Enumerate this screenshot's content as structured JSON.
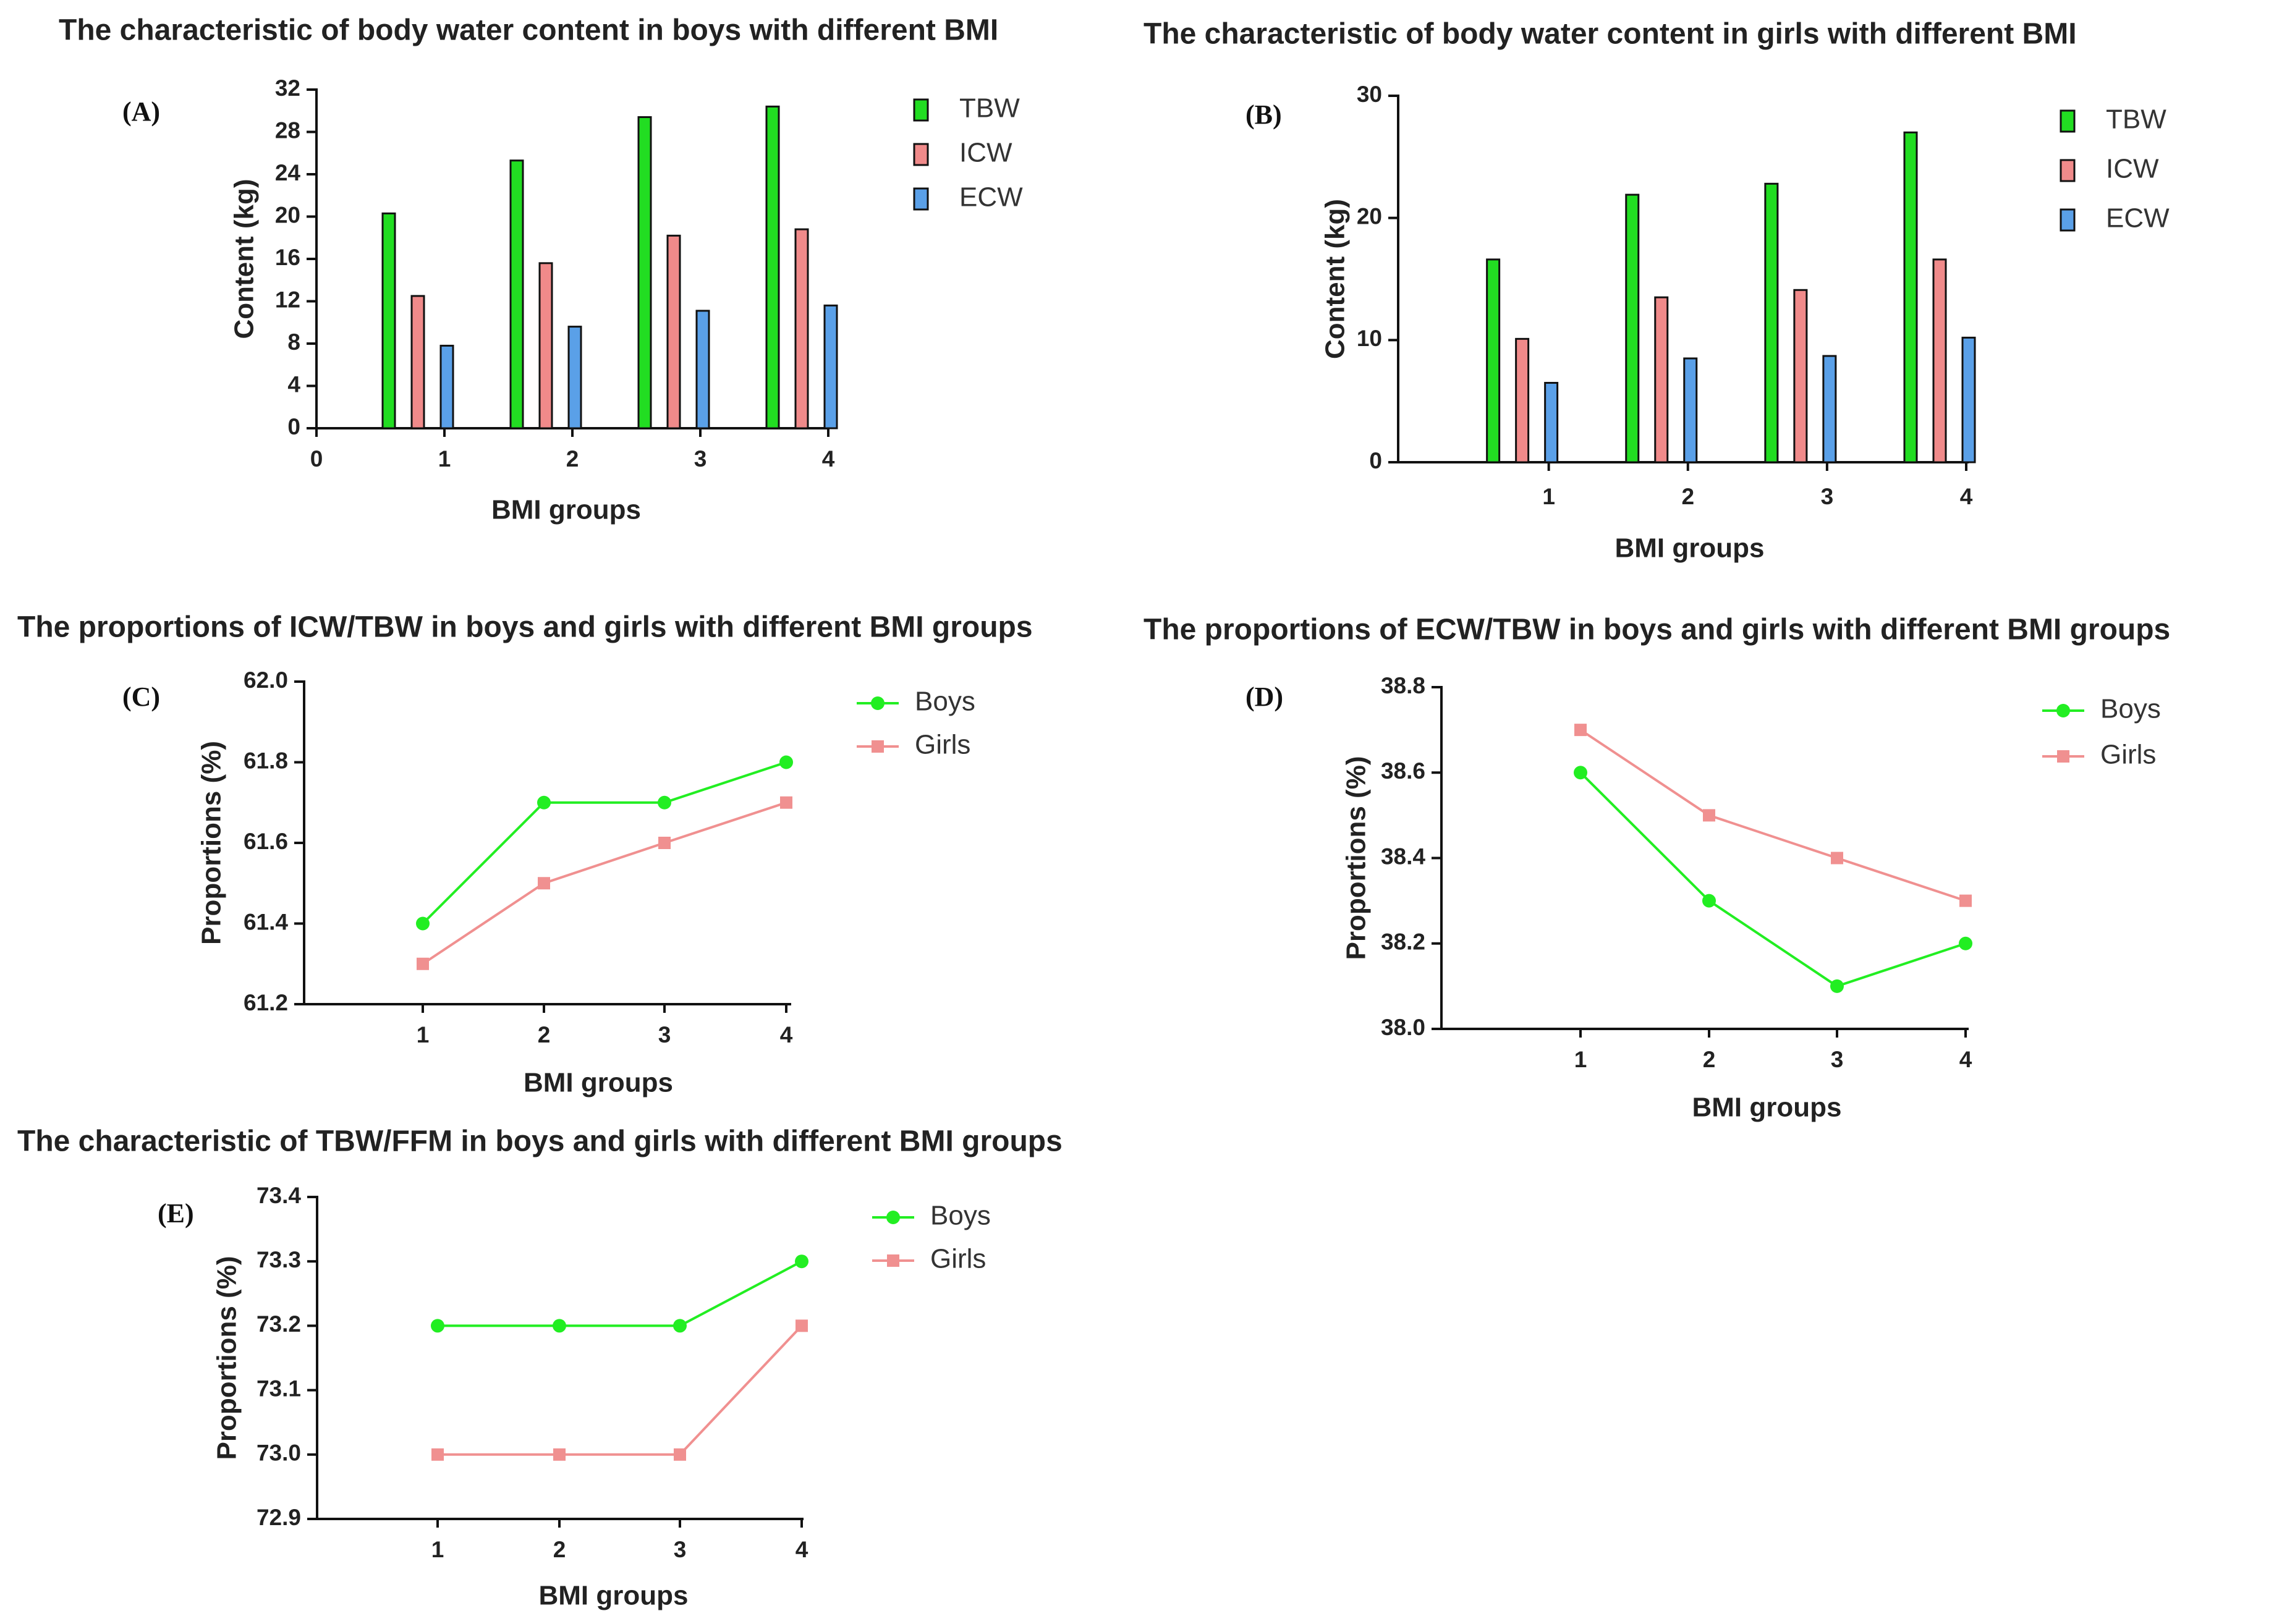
{
  "figure": {
    "colors": {
      "boys": "#22ee22",
      "girls": "#f09090",
      "tbw": "#22dd22",
      "icw": "#f08a8a",
      "ecw": "#5aa0e8",
      "axis": "#111111"
    },
    "panels": [
      "A",
      "B",
      "C",
      "D",
      "E"
    ]
  },
  "chart_data": [
    {
      "id": "A",
      "type": "bar",
      "panel_label": "(A)",
      "title": "The characteristic of body water content in boys with different BMI",
      "xlabel": "BMI groups",
      "ylabel": "Content (kg)",
      "categories": [
        "1",
        "2",
        "3",
        "4"
      ],
      "x_ticks": [
        "0",
        "1",
        "2",
        "3",
        "4"
      ],
      "ylim": [
        0,
        32
      ],
      "y_ticks": [
        "0",
        "4",
        "8",
        "12",
        "16",
        "20",
        "24",
        "28",
        "32"
      ],
      "legend_position": "top-right",
      "series": [
        {
          "name": "TBW",
          "color": "#22dd22",
          "values": [
            20.3,
            25.3,
            29.4,
            30.4
          ]
        },
        {
          "name": "ICW",
          "color": "#f08a8a",
          "values": [
            12.5,
            15.6,
            18.2,
            18.8
          ]
        },
        {
          "name": "ECW",
          "color": "#5aa0e8",
          "values": [
            7.8,
            9.6,
            11.1,
            11.6
          ]
        }
      ]
    },
    {
      "id": "B",
      "type": "bar",
      "panel_label": "(B)",
      "title": "The characteristic of body water content in girls with different BMI",
      "xlabel": "BMI groups",
      "ylabel": "Content (kg)",
      "categories": [
        "1",
        "2",
        "3",
        "4"
      ],
      "x_ticks": [
        "1",
        "2",
        "3",
        "4"
      ],
      "ylim": [
        0,
        30
      ],
      "y_ticks": [
        "0",
        "10",
        "20",
        "30"
      ],
      "legend_position": "top-right",
      "series": [
        {
          "name": "TBW",
          "color": "#22dd22",
          "values": [
            16.6,
            21.9,
            22.8,
            27.0
          ]
        },
        {
          "name": "ICW",
          "color": "#f08a8a",
          "values": [
            10.1,
            13.5,
            14.1,
            16.6
          ]
        },
        {
          "name": "ECW",
          "color": "#5aa0e8",
          "values": [
            6.5,
            8.5,
            8.7,
            10.2
          ]
        }
      ]
    },
    {
      "id": "C",
      "type": "line",
      "panel_label": "(C)",
      "title": "The proportions of ICW/TBW in boys and girls with different BMI groups",
      "xlabel": "BMI groups",
      "ylabel": "Proportions (%)",
      "categories": [
        "1",
        "2",
        "3",
        "4"
      ],
      "ylim": [
        61.2,
        62.0
      ],
      "y_ticks": [
        "61.2",
        "61.4",
        "61.6",
        "61.8",
        "62.0"
      ],
      "legend_position": "top-right",
      "series": [
        {
          "name": "Boys",
          "color": "#22ee22",
          "marker": "circle",
          "values": [
            61.4,
            61.7,
            61.7,
            61.8
          ]
        },
        {
          "name": "Girls",
          "color": "#f09090",
          "marker": "square",
          "values": [
            61.3,
            61.5,
            61.6,
            61.7
          ]
        }
      ]
    },
    {
      "id": "D",
      "type": "line",
      "panel_label": "(D)",
      "title": "The proportions of ECW/TBW in boys and girls with different BMI groups",
      "xlabel": "BMI groups",
      "ylabel": "Proportions (%)",
      "categories": [
        "1",
        "2",
        "3",
        "4"
      ],
      "ylim": [
        38.0,
        38.8
      ],
      "y_ticks": [
        "38.0",
        "38.2",
        "38.4",
        "38.6",
        "38.8"
      ],
      "legend_position": "top-right",
      "series": [
        {
          "name": "Boys",
          "color": "#22ee22",
          "marker": "circle",
          "values": [
            38.6,
            38.3,
            38.1,
            38.2
          ]
        },
        {
          "name": "Girls",
          "color": "#f09090",
          "marker": "square",
          "values": [
            38.7,
            38.5,
            38.4,
            38.3
          ]
        }
      ]
    },
    {
      "id": "E",
      "type": "line",
      "panel_label": "(E)",
      "title": "The characteristic of TBW/FFM in boys and girls with different BMI groups",
      "xlabel": "BMI groups",
      "ylabel": "Proportions (%)",
      "categories": [
        "1",
        "2",
        "3",
        "4"
      ],
      "ylim": [
        72.9,
        73.4
      ],
      "y_ticks": [
        "72.9",
        "73.0",
        "73.1",
        "73.2",
        "73.3",
        "73.4"
      ],
      "legend_position": "top-right",
      "series": [
        {
          "name": "Boys",
          "color": "#22ee22",
          "marker": "circle",
          "values": [
            73.2,
            73.2,
            73.2,
            73.3
          ]
        },
        {
          "name": "Girls",
          "color": "#f09090",
          "marker": "square",
          "values": [
            73.0,
            73.0,
            73.0,
            73.2
          ]
        }
      ]
    }
  ]
}
